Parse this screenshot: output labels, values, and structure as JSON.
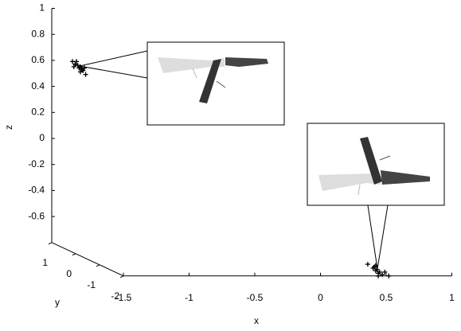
{
  "chart_data": {
    "type": "scatter3d",
    "xlabel": "x",
    "ylabel": "y",
    "zlabel": "z",
    "xlim": [
      -1.5,
      1
    ],
    "ylim": [
      -2,
      1
    ],
    "zlim": [
      -0.8,
      1
    ],
    "xticks": [
      -1.5,
      -1,
      -0.5,
      0,
      0.5,
      1
    ],
    "yticks": [
      1,
      0,
      -1,
      -2
    ],
    "zticks": [
      1,
      0.8,
      0.6,
      0.4,
      0.2,
      0,
      -0.2,
      -0.4,
      -0.6
    ],
    "marker": "+",
    "color": "#000000",
    "series": [
      {
        "x": [
          -1.36,
          -1.34,
          -1.32,
          -1.31,
          -1.3,
          -1.29,
          -1.28,
          -1.27,
          -1.33,
          -1.3,
          -1.26,
          -1.35
        ],
        "y": [
          0.9,
          0.9,
          0.9,
          0.9,
          0.9,
          0.9,
          0.9,
          0.9,
          0.9,
          0.9,
          0.9,
          0.9
        ],
        "z": [
          0.6,
          0.58,
          0.57,
          0.55,
          0.56,
          0.54,
          0.53,
          0.55,
          0.6,
          0.52,
          0.5,
          0.56
        ]
      },
      {
        "x": [
          0.36,
          0.4,
          0.41,
          0.42,
          0.43,
          0.44,
          0.45,
          0.47,
          0.49,
          0.52,
          0.42,
          0.44
        ],
        "y": [
          -2,
          -2,
          -2,
          -2,
          -2,
          -2,
          -2,
          -2,
          -2,
          -2,
          -2,
          -2
        ],
        "z": [
          -0.71,
          -0.74,
          -0.73,
          -0.76,
          -0.75,
          -0.78,
          -0.77,
          -0.79,
          -0.77,
          -0.8,
          -0.72,
          -0.8
        ]
      }
    ]
  }
}
